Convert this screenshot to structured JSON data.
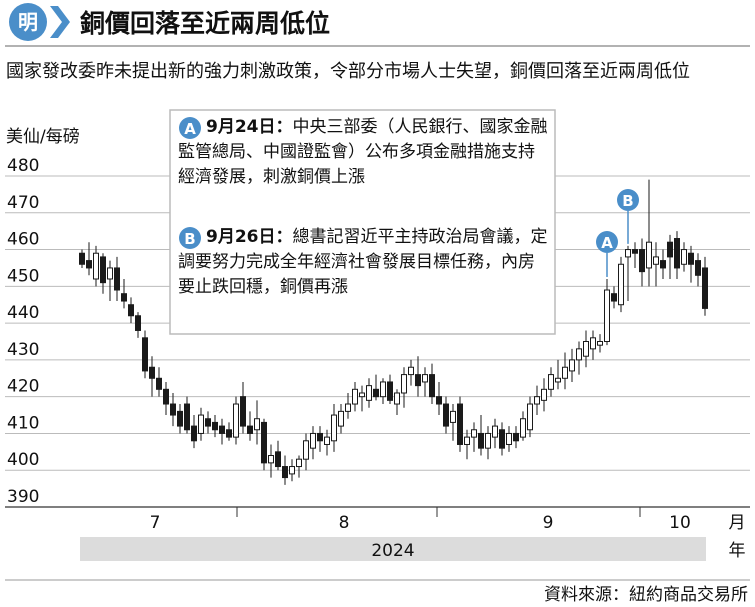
{
  "chart_data": {
    "type": "candlestick",
    "title": "銅價回落至近兩周低位",
    "logo": "明",
    "subtitle": "國家發改委昨未提出新的強力刺激政策，令部分市場人士失望，銅價回落至近兩周低位",
    "y_label": "美仙/每磅",
    "x_unit": "月",
    "year_unit": "年",
    "year": "2024",
    "x_labels": [
      "7",
      "8",
      "9",
      "10"
    ],
    "source": "資料來源：紐約商品交易所",
    "ylim": [
      390,
      480
    ],
    "yticks": [
      390,
      400,
      410,
      420,
      430,
      440,
      450,
      460,
      470,
      480
    ],
    "grid": true,
    "up_color": "#ffffff",
    "down_color": "#1a1a1a",
    "marker_color": "#4a8ec9",
    "annotations": [
      {
        "marker": "A",
        "date": "9月24日：",
        "text": "中央三部委（人民銀行、國家金融監管總局、中國證監會）公布多項金融措施支持經濟發展，刺激銅價上漲"
      },
      {
        "marker": "B",
        "date": "9月26日：",
        "text": "總書記習近平主持政治局會議，定調要努力完成全年經濟社會發展目標任務，內房要止跌回穩，銅價再漲"
      }
    ],
    "open": [
      459,
      457,
      452,
      458,
      452,
      455,
      448,
      445,
      442,
      436,
      428,
      425,
      422,
      418,
      416,
      418,
      412,
      410,
      414,
      413,
      412,
      411,
      409,
      420,
      412,
      411,
      413,
      402,
      405,
      401,
      399,
      401,
      403,
      406,
      410,
      407,
      408,
      412,
      416,
      418,
      420,
      419,
      422,
      420,
      424,
      418,
      421,
      426,
      426,
      424,
      426,
      420,
      418,
      413,
      418,
      407,
      409,
      410,
      406,
      409,
      411,
      407,
      410,
      409,
      411,
      418,
      419,
      422,
      424,
      425,
      427,
      430,
      431,
      433,
      434,
      435,
      448,
      445,
      458,
      460,
      460,
      455,
      456,
      457,
      462,
      463,
      456,
      459,
      457,
      455
    ],
    "high": [
      460,
      462,
      461,
      459,
      457,
      458,
      452,
      447,
      443,
      438,
      431,
      428,
      424,
      421,
      418,
      420,
      415,
      417,
      416,
      415,
      414,
      413,
      420,
      424,
      416,
      419,
      414,
      407,
      408,
      404,
      403,
      404,
      410,
      412,
      412,
      411,
      418,
      418,
      421,
      424,
      423,
      425,
      426,
      425,
      426,
      422,
      428,
      430,
      431,
      428,
      429,
      424,
      420,
      418,
      420,
      411,
      413,
      415,
      412,
      414,
      413,
      412,
      412,
      416,
      420,
      423,
      425,
      428,
      430,
      432,
      433,
      435,
      438,
      438,
      437,
      452,
      450,
      458,
      461,
      462,
      463,
      479,
      462,
      460,
      464,
      465,
      462,
      461,
      459,
      458
    ],
    "low": [
      455,
      453,
      450,
      448,
      446,
      446,
      444,
      440,
      436,
      425,
      420,
      420,
      415,
      412,
      410,
      410,
      406,
      408,
      410,
      409,
      407,
      408,
      407,
      410,
      408,
      407,
      400,
      398,
      400,
      396,
      397,
      398,
      400,
      403,
      405,
      404,
      405,
      410,
      414,
      416,
      416,
      417,
      419,
      418,
      418,
      415,
      417,
      423,
      420,
      420,
      418,
      415,
      410,
      408,
      405,
      403,
      405,
      404,
      403,
      406,
      404,
      405,
      406,
      408,
      409,
      415,
      416,
      420,
      422,
      422,
      424,
      426,
      428,
      430,
      432,
      434,
      444,
      443,
      446,
      455,
      450,
      450,
      450,
      452,
      452,
      452,
      454,
      451,
      450,
      442
    ],
    "close": [
      456,
      455,
      459,
      451,
      455,
      449,
      446,
      442,
      438,
      427,
      425,
      422,
      418,
      415,
      412,
      411,
      408,
      415,
      412,
      411,
      410,
      409,
      418,
      412,
      410,
      414,
      402,
      404,
      401,
      398,
      401,
      403,
      408,
      410,
      408,
      409,
      415,
      416,
      418,
      422,
      421,
      423,
      420,
      424,
      419,
      421,
      426,
      428,
      423,
      426,
      420,
      418,
      412,
      416,
      407,
      409,
      411,
      406,
      410,
      412,
      406,
      410,
      408,
      414,
      418,
      420,
      422,
      426,
      425,
      428,
      430,
      433,
      435,
      436,
      435,
      449,
      446,
      456,
      460,
      459,
      454,
      462,
      458,
      455,
      458,
      455,
      460,
      456,
      453,
      444
    ]
  }
}
